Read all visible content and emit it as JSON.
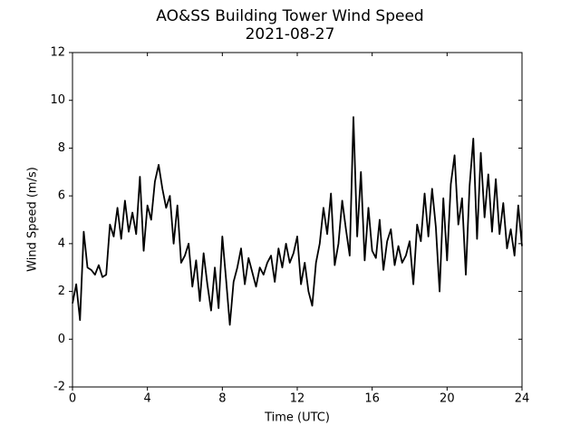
{
  "chart_data": {
    "type": "line",
    "title": "AO&SS Building Tower Wind Speed",
    "subtitle": "2021-08-27",
    "x_label": "Time (UTC)",
    "y_label": "Wind Speed (m/s)",
    "xlim": [
      0,
      24
    ],
    "xticks": [
      0,
      4,
      8,
      12,
      16,
      20,
      24
    ],
    "ylim": [
      -2,
      12
    ],
    "yticks": [
      -2,
      0,
      2,
      4,
      6,
      8,
      10,
      12
    ],
    "grid": false,
    "x": [
      0,
      0.2,
      0.4,
      0.6,
      0.8,
      1,
      1.2,
      1.4,
      1.6,
      1.8,
      2,
      2.2,
      2.4,
      2.6,
      2.8,
      3,
      3.2,
      3.4,
      3.6,
      3.8,
      4,
      4.2,
      4.4,
      4.6,
      4.8,
      5,
      5.2,
      5.4,
      5.6,
      5.8,
      6,
      6.2,
      6.4,
      6.6,
      6.8,
      7,
      7.2,
      7.4,
      7.6,
      7.8,
      8,
      8.2,
      8.4,
      8.6,
      8.8,
      9,
      9.2,
      9.4,
      9.6,
      9.8,
      10,
      10.2,
      10.4,
      10.6,
      10.8,
      11,
      11.2,
      11.4,
      11.6,
      11.8,
      12,
      12.2,
      12.4,
      12.6,
      12.8,
      13,
      13.2,
      13.4,
      13.6,
      13.8,
      14,
      14.2,
      14.4,
      14.6,
      14.8,
      15,
      15.2,
      15.4,
      15.6,
      15.8,
      16,
      16.2,
      16.4,
      16.6,
      16.8,
      17,
      17.2,
      17.4,
      17.6,
      17.8,
      18,
      18.2,
      18.4,
      18.6,
      18.8,
      19,
      19.2,
      19.4,
      19.6,
      19.8,
      20,
      20.2,
      20.4,
      20.6,
      20.8,
      21,
      21.2,
      21.4,
      21.6,
      21.8,
      22,
      22.2,
      22.4,
      22.6,
      22.8,
      23,
      23.2,
      23.4,
      23.6,
      23.8,
      24
    ],
    "series": [
      {
        "name": "Wind Speed",
        "color": "#000000",
        "values": [
          1.5,
          2.3,
          0.8,
          4.5,
          3.0,
          2.9,
          2.7,
          3.1,
          2.6,
          2.7,
          4.8,
          4.3,
          5.5,
          4.2,
          5.8,
          4.5,
          5.3,
          4.4,
          6.8,
          3.7,
          5.6,
          5.0,
          6.6,
          7.3,
          6.3,
          5.5,
          6.0,
          4.0,
          5.6,
          3.2,
          3.5,
          4.0,
          2.2,
          3.3,
          1.6,
          3.6,
          2.3,
          1.2,
          3.0,
          1.3,
          4.3,
          2.5,
          0.6,
          2.4,
          3.0,
          3.8,
          2.3,
          3.4,
          2.8,
          2.2,
          3.0,
          2.7,
          3.2,
          3.5,
          2.4,
          3.8,
          3.0,
          4.0,
          3.2,
          3.6,
          4.3,
          2.3,
          3.2,
          2.0,
          1.4,
          3.2,
          4.0,
          5.5,
          4.4,
          6.1,
          3.1,
          4.0,
          5.8,
          4.6,
          3.5,
          9.3,
          4.3,
          7.0,
          3.3,
          5.5,
          3.7,
          3.4,
          5.0,
          2.9,
          4.1,
          4.6,
          3.1,
          3.9,
          3.2,
          3.5,
          4.1,
          2.3,
          4.8,
          4.1,
          6.1,
          4.3,
          6.3,
          4.7,
          2.0,
          5.9,
          3.3,
          6.5,
          7.7,
          4.8,
          5.9,
          2.7,
          6.4,
          8.4,
          4.2,
          7.8,
          5.1,
          6.9,
          4.5,
          6.7,
          4.4,
          5.7,
          3.8,
          4.6,
          3.5,
          5.6,
          3.9
        ]
      }
    ]
  }
}
